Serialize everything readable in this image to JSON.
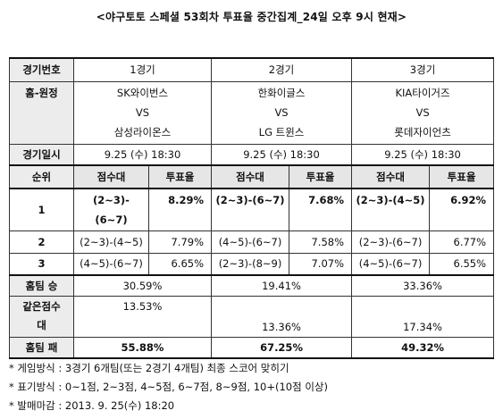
{
  "title": "<야구토토 스페셜 53회차 투표율 중간집계_24일 오후 9시 현재>",
  "header": {
    "label": "경기번호",
    "games": [
      "1경기",
      "2경기",
      "3경기"
    ]
  },
  "matchup": {
    "label": "홈-원정",
    "games": [
      {
        "home": "SK와이번스",
        "vs": "VS",
        "away": "삼성라이온스"
      },
      {
        "home": "한화이글스",
        "vs": "VS",
        "away": "LG 트윈스"
      },
      {
        "home": "KIA타이거즈",
        "vs": "VS",
        "away": "롯데자이언츠"
      }
    ]
  },
  "date": {
    "label": "경기일시",
    "values": [
      "9.25 (수) 18:30",
      "9.25 (수) 18:30",
      "9.25 (수) 18:30"
    ]
  },
  "rank_header": {
    "rank": "순위",
    "score": "점수대",
    "rate": "투표율"
  },
  "ranks": [
    {
      "rank": "1",
      "games": [
        {
          "score": "(2~3)-(6~7)",
          "score_a": "(2~3)-",
          "score_b": "(6~7)",
          "rate": "8.29%"
        },
        {
          "score": "(2~3)-(6~7)",
          "rate": "7.68%"
        },
        {
          "score": "(2~3)-(4~5)",
          "rate": "6.92%"
        }
      ]
    },
    {
      "rank": "2",
      "games": [
        {
          "score": "(2~3)-(4~5)",
          "rate": "7.79%"
        },
        {
          "score": "(4~5)-(6~7)",
          "rate": "7.58%"
        },
        {
          "score": "(2~3)-(6~7)",
          "rate": "6.77%"
        }
      ]
    },
    {
      "rank": "3",
      "games": [
        {
          "score": "(4~5)-(6~7)",
          "rate": "6.65%"
        },
        {
          "score": "(2~3)-(8~9)",
          "rate": "7.07%"
        },
        {
          "score": "(4~5)-(6~7)",
          "rate": "6.55%"
        }
      ]
    }
  ],
  "home_win": {
    "label": "홈팀 승",
    "values": [
      "30.59%",
      "19.41%",
      "33.36%"
    ]
  },
  "draw": {
    "label_a": "같은점수",
    "label_b": "대",
    "values": [
      "13.53%",
      "13.36%",
      "17.34%"
    ]
  },
  "home_loss": {
    "label": "홈팀 패",
    "values": [
      "55.88%",
      "67.25%",
      "49.32%"
    ]
  },
  "notes": {
    "star": "*",
    "items": [
      {
        "key": "게임방식",
        "colon": ":",
        "text": "3경기 6개팀(또는 2경기 4개팀) 최종 스코어 맞히기"
      },
      {
        "key": "표기방식",
        "colon": ":",
        "text": "0~1점, 2~3점, 4~5점, 6~7점, 8~9점, 10+(10점 이상)"
      },
      {
        "key": "발매마감",
        "colon": ":",
        "text": "2013. 9. 25(수) 18:20"
      }
    ]
  }
}
